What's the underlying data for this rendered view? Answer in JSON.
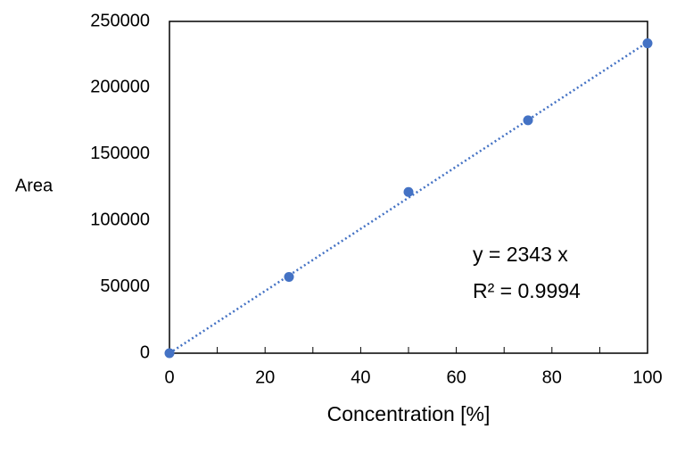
{
  "chart_data": {
    "type": "scatter",
    "x_label": "Concentration [%]",
    "y_label": "Area",
    "series": [
      {
        "name": "Area",
        "color": "#4472c4",
        "x": [
          0,
          25,
          50,
          75,
          100
        ],
        "values": [
          0,
          57500,
          121500,
          175500,
          233500
        ]
      }
    ],
    "trendline": {
      "slope": 2343,
      "color": "#4472c4",
      "equation": "y = 2343 x",
      "r_squared_label": "R² = 0.9994"
    },
    "xlim": [
      0,
      100
    ],
    "xticks": [
      0,
      20,
      40,
      60,
      80,
      100
    ],
    "xminorticks": [
      10,
      30,
      50,
      70,
      90
    ],
    "ylim": [
      0,
      250000
    ],
    "yticks": [
      0,
      50000,
      100000,
      150000,
      200000,
      250000
    ],
    "grid": false
  }
}
